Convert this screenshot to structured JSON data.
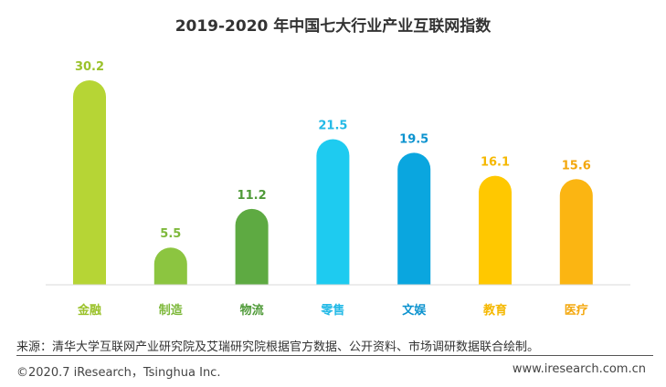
{
  "chart_data": {
    "type": "bar",
    "title": "2019-2020 年中国七大行业产业互联网指数",
    "categories": [
      "金融",
      "制造",
      "物流",
      "零售",
      "文娱",
      "教育",
      "医疗"
    ],
    "values": [
      30.2,
      5.5,
      11.2,
      21.5,
      19.5,
      16.1,
      15.6
    ],
    "colors": [
      "#b6d535",
      "#8cc540",
      "#5eaa42",
      "#1ecbf0",
      "#0aa6df",
      "#ffc800",
      "#fbb512"
    ],
    "label_colors": [
      "#9bc22b",
      "#7db83a",
      "#4f9a38",
      "#22b9e6",
      "#0c93cf",
      "#f5b800",
      "#f3a70d"
    ],
    "ylim": [
      0,
      32
    ],
    "grid": false,
    "legend": "none"
  },
  "footer": {
    "source": "来源：清华大学互联网产业研究院及艾瑞研究院根据官方数据、公开资料、市场调研数据联合绘制。",
    "copyright": "©2020.7 iResearch，Tsinghua Inc.",
    "website": "www.iresearch.com.cn"
  }
}
